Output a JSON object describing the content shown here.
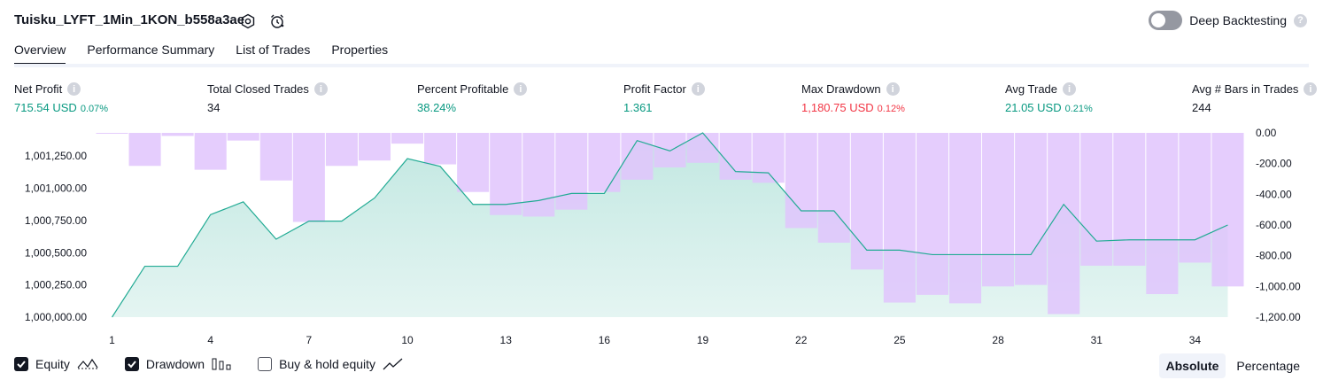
{
  "header": {
    "title": "Tuisku_LYFT_1Min_1KON_b558a3ae",
    "deep_backtesting_label": "Deep Backtesting",
    "help_glyph": "?"
  },
  "tabs": [
    {
      "label": "Overview",
      "active": true
    },
    {
      "label": "Performance Summary"
    },
    {
      "label": "List of Trades"
    },
    {
      "label": "Properties"
    }
  ],
  "metrics": [
    {
      "label": "Net Profit",
      "value": "715.54 USD",
      "sub": "0.07%",
      "tone": "green"
    },
    {
      "label": "Total Closed Trades",
      "value": "34",
      "sub": "",
      "tone": "dark"
    },
    {
      "label": "Percent Profitable",
      "value": "38.24%",
      "sub": "",
      "tone": "green"
    },
    {
      "label": "Profit Factor",
      "value": "1.361",
      "sub": "",
      "tone": "green"
    },
    {
      "label": "Max Drawdown",
      "value": "1,180.75 USD",
      "sub": "0.12%",
      "tone": "red"
    },
    {
      "label": "Avg Trade",
      "value": "21.05 USD",
      "sub": "0.21%",
      "tone": "green"
    },
    {
      "label": "Avg # Bars in Trades",
      "value": "244",
      "sub": "",
      "tone": "dark"
    }
  ],
  "legend": {
    "equity_label": "Equity",
    "drawdown_label": "Drawdown",
    "buyhold_label": "Buy & hold equity",
    "absolute_label": "Absolute",
    "percentage_label": "Percentage"
  },
  "colors": {
    "equity_line": "#22ab94",
    "equity_fill": "#22ab94",
    "drawdown_bar": "#e1c4fd"
  },
  "chart_data": {
    "type": "area",
    "x": [
      1,
      2,
      3,
      4,
      5,
      6,
      7,
      8,
      9,
      10,
      11,
      12,
      13,
      14,
      15,
      16,
      17,
      18,
      19,
      20,
      21,
      22,
      23,
      24,
      25,
      26,
      27,
      28,
      29,
      30,
      31,
      32,
      33,
      34,
      35
    ],
    "x_tick_labels": [
      "1",
      "4",
      "7",
      "10",
      "13",
      "16",
      "19",
      "22",
      "25",
      "28",
      "31",
      "34"
    ],
    "series": [
      {
        "name": "Equity",
        "axis": "left",
        "values": [
          1000000,
          1000395,
          1000395,
          1000795,
          1000895,
          1000605,
          1000745,
          1000745,
          1000925,
          1001230,
          1001170,
          1000875,
          1000875,
          1000905,
          1000960,
          1000960,
          1001370,
          1001290,
          1001430,
          1001130,
          1001120,
          1000825,
          1000825,
          1000520,
          1000520,
          1000485,
          1000485,
          1000485,
          1000485,
          1000875,
          1000590,
          1000600,
          1000600,
          1000600,
          1000715
        ]
      },
      {
        "name": "Drawdown",
        "axis": "right",
        "type": "bar",
        "values": [
          -5,
          -215,
          -20,
          -240,
          -50,
          -310,
          -580,
          -215,
          -180,
          -70,
          -205,
          -385,
          -535,
          -545,
          -500,
          -385,
          -305,
          -225,
          -195,
          -305,
          -325,
          -620,
          -715,
          -890,
          -1105,
          -1055,
          -1110,
          -1000,
          -990,
          -1180,
          -865,
          -865,
          -1050,
          -845,
          -1000
        ]
      }
    ],
    "y_left_ticks": [
      "1,000,000.00",
      "1,000,250.00",
      "1,000,500.00",
      "1,000,750.00",
      "1,001,000.00",
      "1,001,250.00"
    ],
    "y_left_range": [
      1000000,
      1001430
    ],
    "y_right_ticks": [
      "0.00",
      "-200.00",
      "-400.00",
      "-600.00",
      "-800.00",
      "-1,000.00",
      "-1,200.00"
    ],
    "y_right_range": [
      -1200,
      0
    ]
  }
}
